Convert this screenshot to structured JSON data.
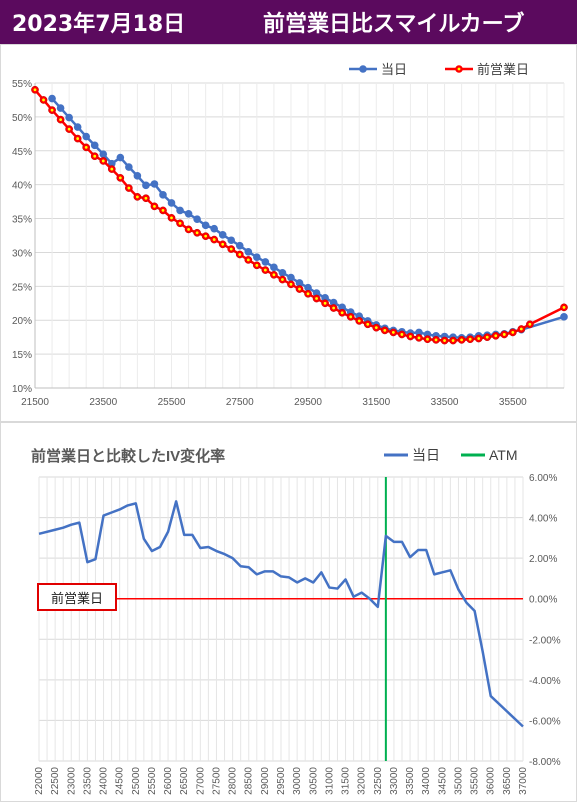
{
  "header": {
    "date": "2023年7月18日",
    "title": "前営業日比スマイルカーブ"
  },
  "colors": {
    "header_bg": "#5b0a5e",
    "today": "#4472c4",
    "prev_day": "#ff0000",
    "atm": "#00b050",
    "zero_line": "#ff0000"
  },
  "chart_data": [
    {
      "type": "line",
      "x_ticks": [
        "21500",
        "23500",
        "25500",
        "27500",
        "29500",
        "31500",
        "33500",
        "35500"
      ],
      "y_ticks": [
        "10%",
        "15%",
        "20%",
        "25%",
        "30%",
        "35%",
        "40%",
        "45%",
        "50%",
        "55%"
      ],
      "xlim": [
        21500,
        37000
      ],
      "ylim": [
        10,
        55
      ],
      "legend_position": "top-right",
      "grid": true,
      "series": [
        {
          "name": "当日",
          "color": "#4472c4",
          "x": [
            22000,
            22250,
            22500,
            22750,
            23000,
            23250,
            23500,
            23750,
            24000,
            24250,
            24500,
            24750,
            25000,
            25250,
            25500,
            25750,
            26000,
            26250,
            26500,
            26750,
            27000,
            27250,
            27500,
            27750,
            28000,
            28250,
            28500,
            28750,
            29000,
            29250,
            29500,
            29750,
            30000,
            30250,
            30500,
            30750,
            31000,
            31250,
            31500,
            31750,
            32000,
            32250,
            32500,
            32750,
            33000,
            33250,
            33500,
            33750,
            34000,
            34250,
            34500,
            34750,
            35000,
            35250,
            35500,
            35750,
            37000
          ],
          "y": [
            52.7,
            51.3,
            49.9,
            48.5,
            47.1,
            45.8,
            44.5,
            43.1,
            44.0,
            42.6,
            41.3,
            39.9,
            40.1,
            38.5,
            37.3,
            36.2,
            35.7,
            34.9,
            34.0,
            33.5,
            32.6,
            31.8,
            31.0,
            30.1,
            29.3,
            28.6,
            27.8,
            27.0,
            26.3,
            25.5,
            24.8,
            24.0,
            23.3,
            22.6,
            21.9,
            21.2,
            20.6,
            19.9,
            19.3,
            18.8,
            18.5,
            18.3,
            18.1,
            18.2,
            17.9,
            17.7,
            17.6,
            17.5,
            17.4,
            17.5,
            17.7,
            17.8,
            17.9,
            18.0,
            18.3,
            18.6,
            20.5
          ]
        },
        {
          "name": "前営業日",
          "color": "#ff0000",
          "x": [
            21500,
            21750,
            22000,
            22250,
            22500,
            22750,
            23000,
            23250,
            23500,
            23750,
            24000,
            24250,
            24500,
            24750,
            25000,
            25250,
            25500,
            25750,
            26000,
            26250,
            26500,
            26750,
            27000,
            27250,
            27500,
            27750,
            28000,
            28250,
            28500,
            28750,
            29000,
            29250,
            29500,
            29750,
            30000,
            30250,
            30500,
            30750,
            31000,
            31250,
            31500,
            31750,
            32000,
            32250,
            32500,
            32750,
            33000,
            33250,
            33500,
            33750,
            34000,
            34250,
            34500,
            34750,
            35000,
            35250,
            35500,
            35750,
            36000,
            37000
          ],
          "y": [
            54.0,
            52.5,
            51.0,
            49.6,
            48.2,
            46.8,
            45.5,
            44.2,
            43.5,
            42.3,
            41.0,
            39.5,
            38.2,
            38.0,
            36.8,
            36.2,
            35.1,
            34.3,
            33.4,
            32.9,
            32.4,
            31.9,
            31.2,
            30.5,
            29.7,
            28.9,
            28.1,
            27.4,
            26.7,
            26.0,
            25.3,
            24.6,
            23.9,
            23.2,
            22.5,
            21.8,
            21.1,
            20.5,
            19.9,
            19.4,
            18.9,
            18.5,
            18.2,
            17.9,
            17.6,
            17.4,
            17.2,
            17.1,
            17.0,
            17.0,
            17.1,
            17.2,
            17.3,
            17.5,
            17.7,
            17.9,
            18.2,
            18.7,
            19.4,
            21.9
          ]
        }
      ]
    },
    {
      "type": "line",
      "title": "前営業日と比較したIV変化率",
      "x_ticks": [
        "22000",
        "22500",
        "23000",
        "23500",
        "24000",
        "24500",
        "25000",
        "25500",
        "26000",
        "26500",
        "27000",
        "27500",
        "28000",
        "28500",
        "29000",
        "29500",
        "30000",
        "30500",
        "31000",
        "31500",
        "32000",
        "32500",
        "33000",
        "33500",
        "34000",
        "34500",
        "35000",
        "35500",
        "36000",
        "36500",
        "37000"
      ],
      "y_ticks": [
        "6.00%",
        "4.00%",
        "2.00%",
        "0.00%",
        "-2.00%",
        "-4.00%",
        "-6.00%",
        "-8.00%"
      ],
      "ylim": [
        -8,
        6
      ],
      "xlim": [
        22000,
        37000
      ],
      "legend_position": "top-right",
      "grid": true,
      "zero_line_label": "前営業日",
      "atm_strike": 32750,
      "series": [
        {
          "name": "当日",
          "color": "#4472c4",
          "x": [
            22000,
            22500,
            22750,
            23000,
            23250,
            23500,
            23750,
            24000,
            24250,
            24500,
            24750,
            25000,
            25250,
            25500,
            25750,
            26000,
            26250,
            26500,
            26750,
            27000,
            27250,
            27500,
            27750,
            28000,
            28250,
            28500,
            28750,
            29000,
            29250,
            29500,
            29750,
            30000,
            30250,
            30500,
            30750,
            31000,
            31250,
            31500,
            31750,
            32000,
            32250,
            32500,
            32750,
            33000,
            33250,
            33500,
            33750,
            34000,
            34250,
            34500,
            34750,
            35000,
            35250,
            35500,
            35750,
            36000,
            37000
          ],
          "y": [
            3.2,
            3.4,
            3.5,
            3.65,
            3.75,
            1.8,
            1.95,
            4.1,
            4.25,
            4.4,
            4.6,
            4.7,
            2.95,
            2.35,
            2.55,
            3.3,
            4.8,
            3.15,
            3.15,
            2.5,
            2.55,
            2.35,
            2.2,
            2.0,
            1.6,
            1.55,
            1.2,
            1.35,
            1.35,
            1.1,
            1.05,
            0.8,
            1.0,
            0.8,
            1.3,
            0.55,
            0.5,
            0.95,
            0.1,
            0.3,
            0.0,
            -0.4,
            3.1,
            2.8,
            2.8,
            2.05,
            2.4,
            2.4,
            1.2,
            1.3,
            1.4,
            0.45,
            -0.2,
            -0.6,
            -2.6,
            -4.8,
            -6.3
          ]
        },
        {
          "name": "ATM",
          "color": "#00b050"
        }
      ]
    }
  ]
}
